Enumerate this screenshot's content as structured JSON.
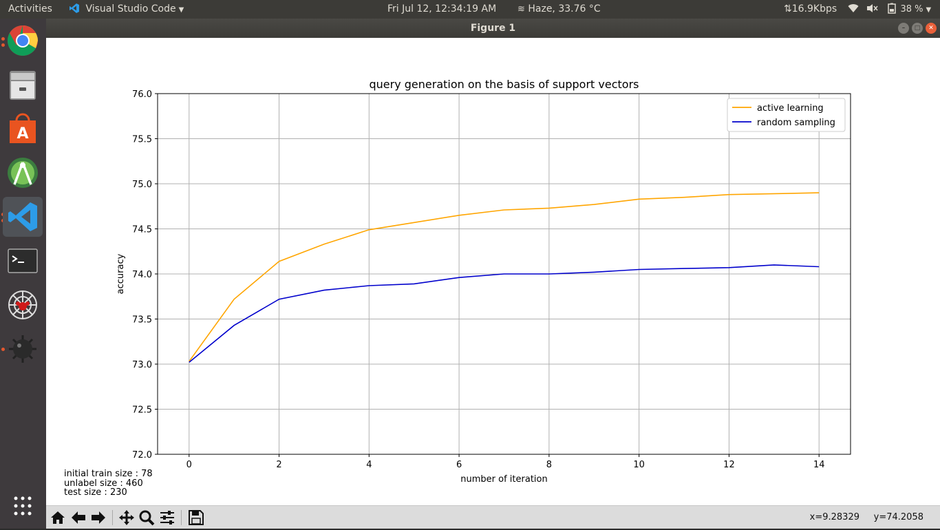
{
  "topbar": {
    "activities": "Activities",
    "app_name": "Visual Studio Code",
    "clock": "Fri Jul 12, 12:34:19 AM",
    "weather": "Haze, 33.76 °C",
    "network_speed": "⇅16.9Kbps",
    "battery": "38 %"
  },
  "launcher": {
    "items": [
      "chrome-icon",
      "files-icon",
      "software-center-icon",
      "android-studio-icon",
      "vscode-icon",
      "terminal-icon",
      "spider-icon",
      "mines-icon",
      "app-grid-icon"
    ]
  },
  "window": {
    "title": "Figure 1"
  },
  "figure_text": {
    "train_size": "initial train size : 78",
    "unlabel_size": "unlabel size : 460",
    "test_size": "test size : 230"
  },
  "toolbar": {
    "coords": "x=9.28329     y=74.2058"
  },
  "colors": {
    "active": "#ffa500",
    "random": "#0000cc",
    "grid": "#b0b0b0"
  },
  "chart_data": {
    "type": "line",
    "title": "query generation on the basis of support vectors",
    "xlabel": "number of iteration",
    "ylabel": "accuracy",
    "xlim": [
      -0.7,
      14.7
    ],
    "ylim": [
      72.0,
      76.0
    ],
    "xticks": [
      0,
      2,
      4,
      6,
      8,
      10,
      12,
      14
    ],
    "yticks": [
      72.0,
      72.5,
      73.0,
      73.5,
      74.0,
      74.5,
      75.0,
      75.5,
      76.0
    ],
    "grid": true,
    "legend": "top-right",
    "x": [
      0,
      1,
      2,
      3,
      4,
      5,
      6,
      7,
      8,
      9,
      10,
      11,
      12,
      13,
      14
    ],
    "series": [
      {
        "name": "active learning",
        "color": "#ffa500",
        "values": [
          73.03,
          73.72,
          74.14,
          74.33,
          74.49,
          74.57,
          74.65,
          74.71,
          74.73,
          74.77,
          74.83,
          74.85,
          74.88,
          74.89,
          74.9
        ]
      },
      {
        "name": "random sampling",
        "color": "#0000cc",
        "values": [
          73.02,
          73.43,
          73.72,
          73.82,
          73.87,
          73.89,
          73.96,
          74.0,
          74.0,
          74.02,
          74.05,
          74.06,
          74.07,
          74.1,
          74.08
        ]
      }
    ]
  }
}
